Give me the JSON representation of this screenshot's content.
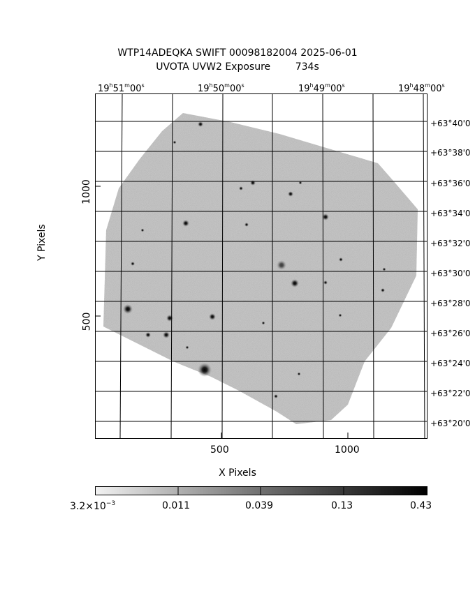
{
  "title": {
    "line1": "WTP14ADEQKA SWIFT 00098182004 2025-06-01",
    "line2": "UVOTA UVW2 Exposure        734s"
  },
  "axes": {
    "x_label": "X Pixels",
    "y_label": "Y Pixels",
    "x_ticks": [
      "500",
      "1000"
    ],
    "y_ticks": [
      "1000",
      "500"
    ]
  },
  "ra_ticks": [
    {
      "h": "19",
      "m": "51",
      "s": "00"
    },
    {
      "h": "19",
      "m": "50",
      "s": "00"
    },
    {
      "h": "19",
      "m": "49",
      "s": "00"
    },
    {
      "h": "19",
      "m": "48",
      "s": "00"
    }
  ],
  "dec_ticks": [
    "+63°40'0",
    "+63°38'0",
    "+63°36'0",
    "+63°34'0",
    "+63°32'0",
    "+63°30'0",
    "+63°28'0",
    "+63°26'0",
    "+63°24'0",
    "+63°22'0",
    "+63°20'0"
  ],
  "colorbar": {
    "labels": [
      "0.011",
      "0.039",
      "0.13",
      "0.43"
    ],
    "first_label_mantissa": "3.2×10",
    "first_label_exponent": "−3"
  }
}
